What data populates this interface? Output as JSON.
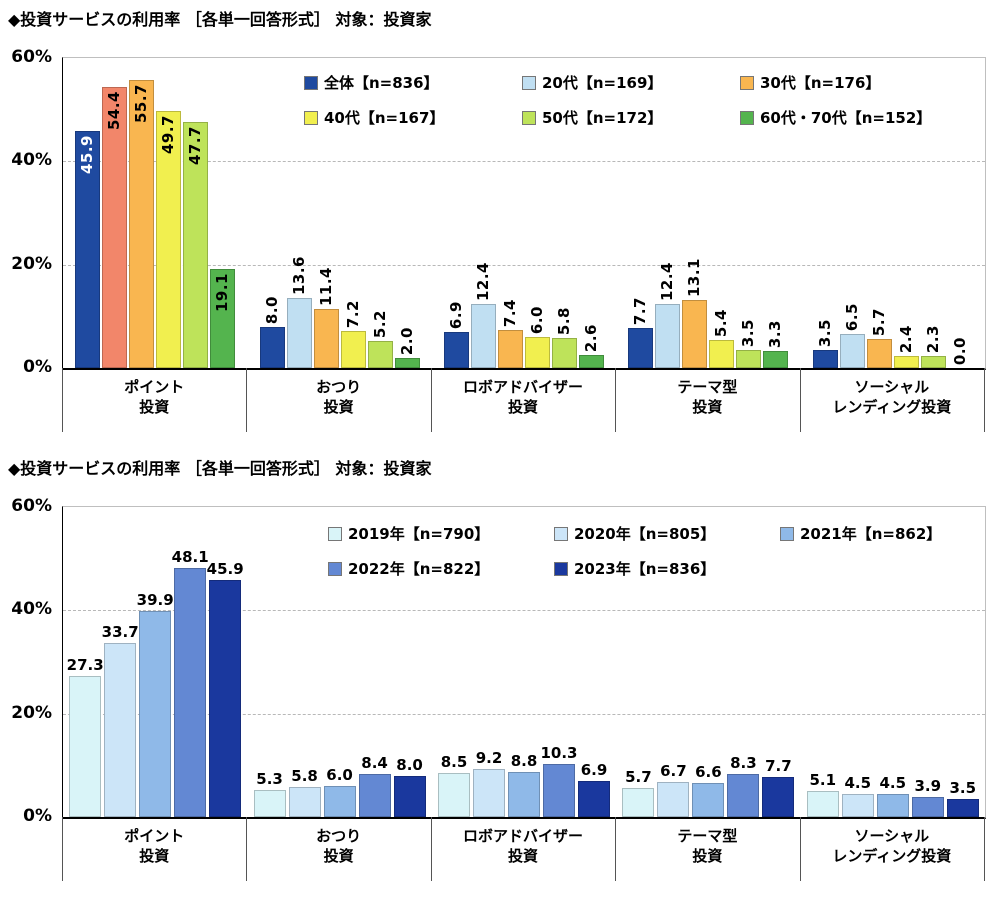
{
  "page": {
    "background": "#FFFFFF"
  },
  "chart_data": [
    {
      "type": "bar",
      "title": "◆投資サービスの利用率 ［各単一回答形式］ 対象：投資家",
      "xlabel": "",
      "ylabel": "",
      "ylim": [
        0,
        60
      ],
      "yticks": [
        {
          "label": "60%",
          "value": 60
        },
        {
          "label": "40%",
          "value": 40
        },
        {
          "label": "20%",
          "value": 20
        },
        {
          "label": "0%",
          "value": 0
        }
      ],
      "gridlines": [
        20,
        40
      ],
      "grid": "horizontal dashed",
      "legend_position": "top-inside",
      "data_label_style": "vertical",
      "categories": [
        "ポイント\n投資",
        "おつり\n投資",
        "ロボアドバイザー\n投資",
        "テーマ型\n投資",
        "ソーシャル\nレンディング投資"
      ],
      "series": [
        {
          "name": "全体【n=836】",
          "color": "#1F4AA0",
          "values": [
            45.9,
            8.0,
            6.9,
            7.7,
            3.5
          ]
        },
        {
          "name": "20代【n=169】",
          "color": "#C0DFF2",
          "values": [
            54.4,
            13.6,
            12.4,
            12.4,
            6.5
          ]
        },
        {
          "name": "30代【n=176】",
          "color": "#F9B650",
          "values": [
            55.7,
            11.4,
            7.4,
            13.1,
            5.7
          ]
        },
        {
          "name": "40代【n=167】",
          "color": "#F1EF4F",
          "values": [
            49.7,
            7.2,
            6.0,
            5.4,
            2.4
          ]
        },
        {
          "name": "50代【n=172】",
          "color": "#BEE35A",
          "values": [
            47.7,
            5.2,
            5.8,
            3.5,
            2.3
          ]
        },
        {
          "name": "60代・70代【n=152】",
          "color": "#54B44E",
          "values": [
            19.1,
            2.0,
            2.6,
            3.3,
            0.0
          ]
        }
      ],
      "color_overrides": [
        {
          "category_index": 0,
          "series_index": 1,
          "color": "#F2866A"
        }
      ]
    },
    {
      "type": "bar",
      "title": "◆投資サービスの利用率 ［各単一回答形式］ 対象：投資家",
      "xlabel": "",
      "ylabel": "",
      "ylim": [
        0,
        60
      ],
      "yticks": [
        {
          "label": "60%",
          "value": 60
        },
        {
          "label": "40%",
          "value": 40
        },
        {
          "label": "20%",
          "value": 20
        },
        {
          "label": "0%",
          "value": 0
        }
      ],
      "gridlines": [
        20,
        40
      ],
      "grid": "horizontal dashed",
      "legend_position": "top-inside",
      "data_label_style": "horizontal",
      "categories": [
        "ポイント\n投資",
        "おつり\n投資",
        "ロボアドバイザー\n投資",
        "テーマ型\n投資",
        "ソーシャル\nレンディング投資"
      ],
      "series": [
        {
          "name": "2019年【n=790】",
          "color": "#D9F4F8",
          "values": [
            27.3,
            5.3,
            8.5,
            5.7,
            5.1
          ]
        },
        {
          "name": "2020年【n=805】",
          "color": "#CCE5F8",
          "values": [
            33.7,
            5.8,
            9.2,
            6.7,
            4.5
          ]
        },
        {
          "name": "2021年【n=862】",
          "color": "#8FB9E8",
          "values": [
            39.9,
            6.0,
            8.8,
            6.6,
            4.5
          ]
        },
        {
          "name": "2022年【n=822】",
          "color": "#6388D3",
          "values": [
            48.1,
            8.4,
            10.3,
            8.3,
            3.9
          ]
        },
        {
          "name": "2023年【n=836】",
          "color": "#1A389E",
          "values": [
            45.9,
            8.0,
            6.9,
            7.7,
            3.5
          ]
        }
      ],
      "color_overrides": []
    }
  ]
}
